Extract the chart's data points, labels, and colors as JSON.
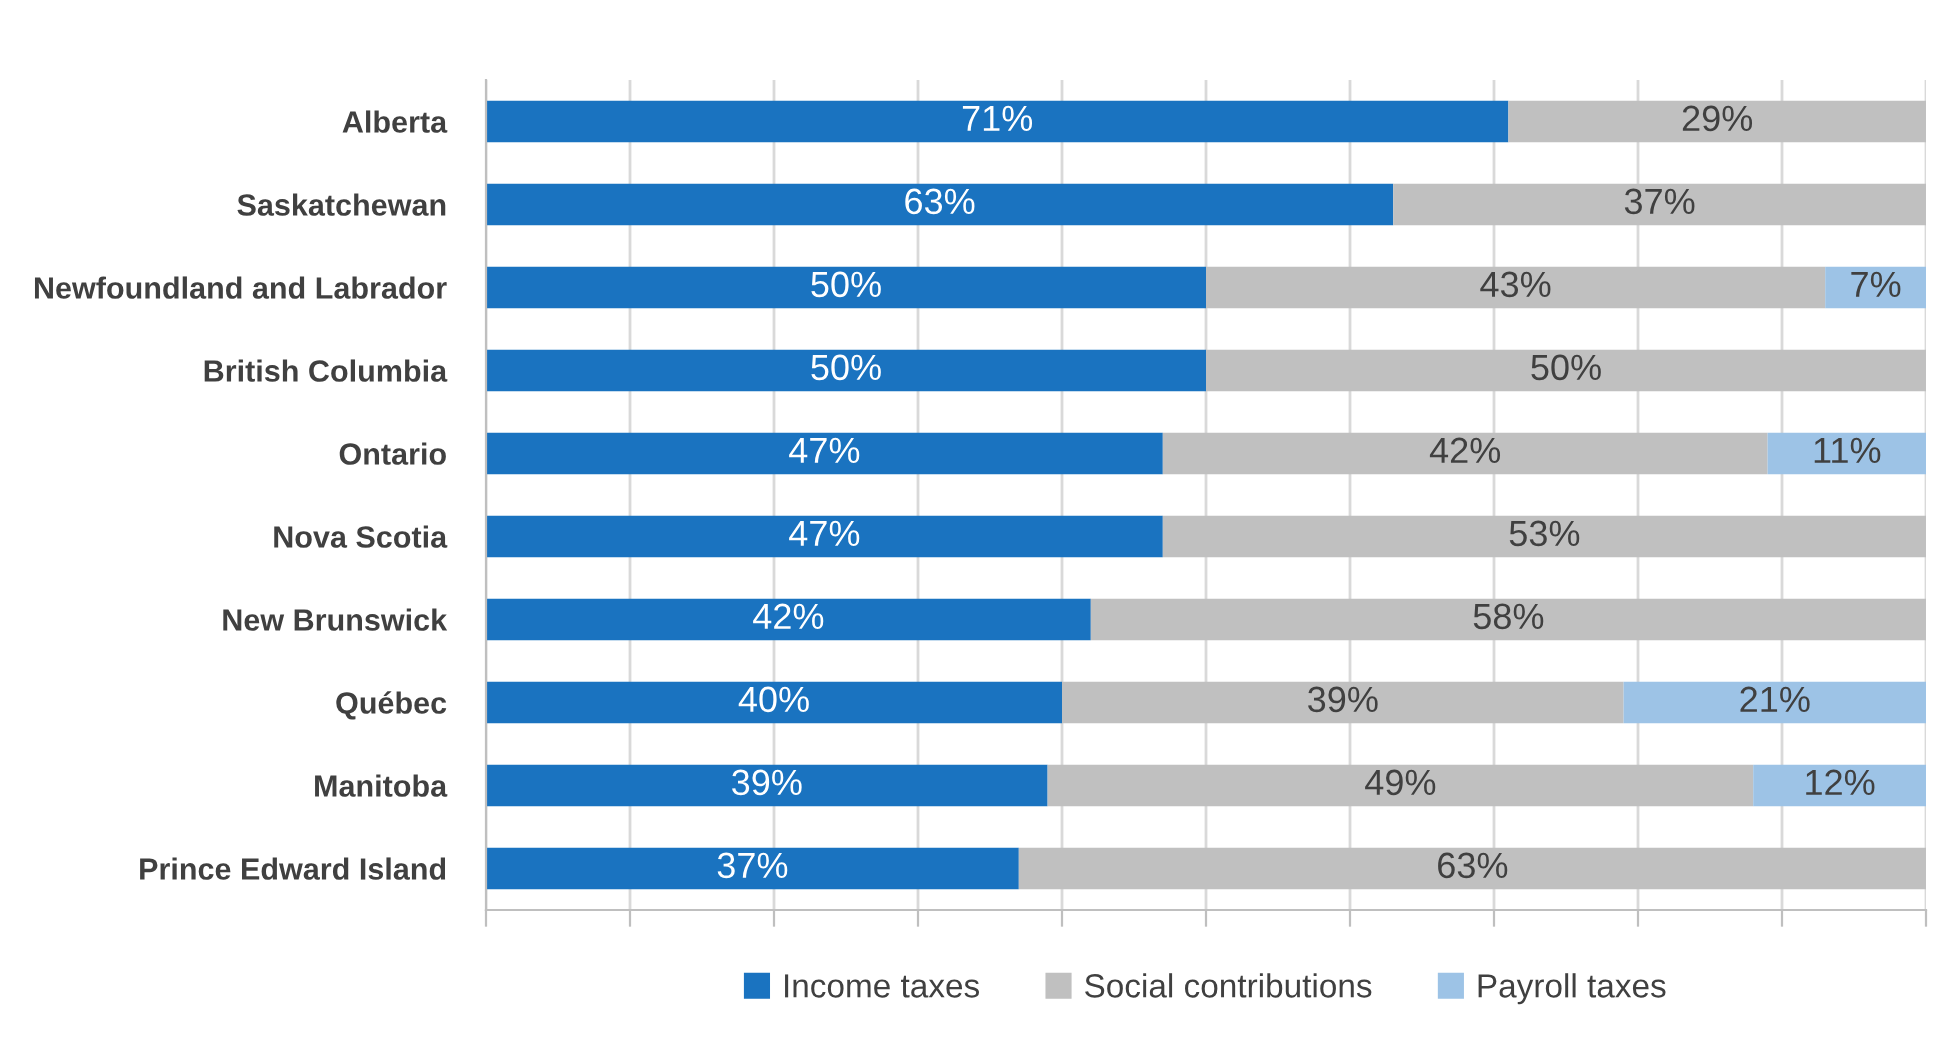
{
  "chart_data": {
    "type": "bar",
    "orientation": "horizontal",
    "stacked": true,
    "categories": [
      "Alberta",
      "Saskatchewan",
      "Newfoundland and Labrador",
      "British Columbia",
      "Ontario",
      "Nova Scotia",
      "New Brunswick",
      "Québec",
      "Manitoba",
      "Prince Edward Island"
    ],
    "series": [
      {
        "name": "Income taxes",
        "color": "#1a73c0",
        "values": [
          71,
          63,
          50,
          50,
          47,
          47,
          42,
          40,
          39,
          37
        ],
        "value_labels": [
          "71%",
          "63%",
          "50%",
          "50%",
          "47%",
          "47%",
          "42%",
          "40%",
          "39%",
          "37%"
        ]
      },
      {
        "name": "Social contributions",
        "color": "#c0c0c0",
        "values": [
          29,
          37,
          43,
          50,
          42,
          53,
          58,
          39,
          49,
          63
        ],
        "value_labels": [
          "29%",
          "37%",
          "43%",
          "50%",
          "42%",
          "53%",
          "58%",
          "39%",
          "49%",
          "63%"
        ]
      },
      {
        "name": "Payroll taxes",
        "color": "#9dc3e6",
        "values": [
          null,
          null,
          7,
          null,
          11,
          null,
          null,
          21,
          12,
          null
        ],
        "value_labels": [
          null,
          null,
          "7%",
          null,
          "11%",
          null,
          null,
          "21%",
          "12%",
          null
        ]
      }
    ],
    "xlim": [
      0,
      100
    ],
    "xticks": [
      {
        "value": 0,
        "label": null
      },
      {
        "value": 10,
        "label": null
      },
      {
        "value": 20,
        "label": null
      },
      {
        "value": 30,
        "label": null
      },
      {
        "value": 40,
        "label": null
      },
      {
        "value": 50,
        "label": null
      },
      {
        "value": 60,
        "label": null
      },
      {
        "value": 70,
        "label": null
      },
      {
        "value": 80,
        "label": null
      },
      {
        "value": 90,
        "label": null
      },
      {
        "value": 100,
        "label": null
      }
    ],
    "grid": "x",
    "legend": "bottom"
  }
}
